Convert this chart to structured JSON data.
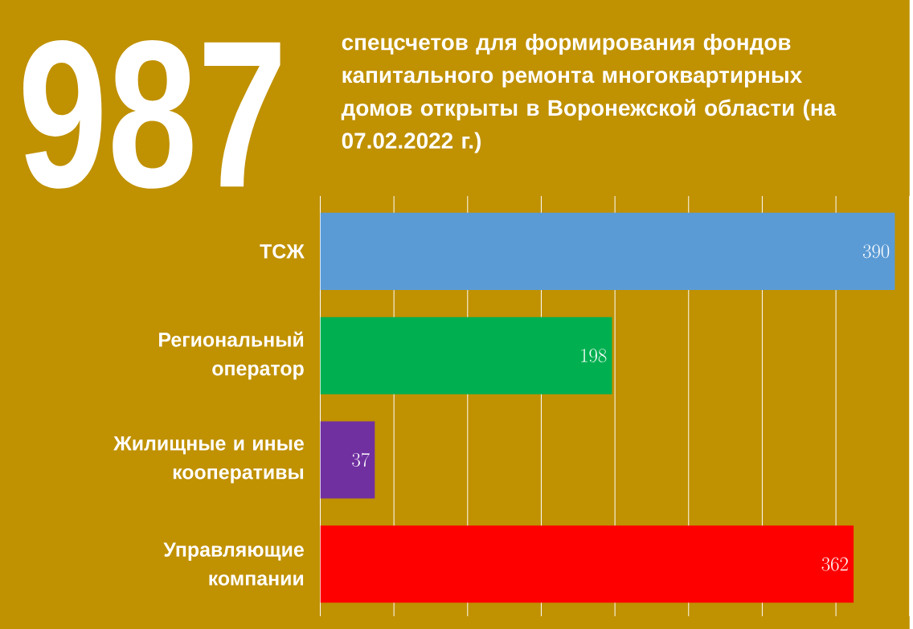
{
  "chart_data": {
    "type": "bar",
    "orientation": "horizontal",
    "title": "спецсчетов для формирования фондов капитального ремонта многоквартирных домов открыты в Воронежской области (на 07.02.2022 г.)",
    "annotations": [
      "987"
    ],
    "categories": [
      "ТСЖ",
      "Региональный оператор",
      "Жилищные и иные кооперативы",
      "Управляющие компании"
    ],
    "values": [
      390,
      198,
      37,
      362
    ],
    "colors": [
      "#5b9bd5",
      "#00b050",
      "#7030a0",
      "#ff0000"
    ],
    "data_labels": true,
    "xlim": [
      0,
      400
    ],
    "xticks": [
      {
        "value": 0,
        "label": null
      },
      {
        "value": 50,
        "label": null
      },
      {
        "value": 100,
        "label": null
      },
      {
        "value": 150,
        "label": null
      },
      {
        "value": 200,
        "label": null
      },
      {
        "value": 250,
        "label": null
      },
      {
        "value": 300,
        "label": null
      },
      {
        "value": 350,
        "label": null
      },
      {
        "value": 400,
        "label": null
      }
    ],
    "grid": "x",
    "tick_labels": "y"
  }
}
